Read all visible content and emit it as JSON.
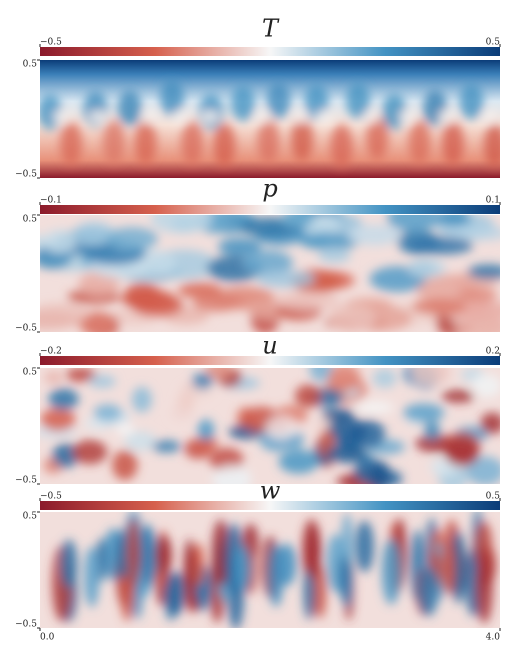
{
  "chart_data": [
    {
      "type": "heatmap",
      "title": "T",
      "colormap": "RdBu",
      "clim": [
        -0.5,
        0.5
      ],
      "cticks": [
        {
          "value": -0.5,
          "label": "−0.5"
        },
        0.5
      ],
      "xlim": [
        0,
        4
      ],
      "ylim": [
        -0.5,
        0.5
      ],
      "yticks": [
        {
          "value": -0.5,
          "label": "−0.5"
        },
        0.5
      ]
    },
    {
      "type": "heatmap",
      "title": "p",
      "colormap": "RdBu",
      "clim": [
        -0.1,
        0.1
      ],
      "cticks": [
        {
          "value": -0.1,
          "label": "−0.1"
        },
        0.1
      ],
      "xlim": [
        0,
        4
      ],
      "ylim": [
        -0.5,
        0.5
      ],
      "yticks": [
        {
          "value": -0.5,
          "label": "−0.5"
        },
        0.5
      ]
    },
    {
      "type": "heatmap",
      "title": "u",
      "colormap": "RdBu",
      "clim": [
        -0.2,
        0.2
      ],
      "cticks": [
        {
          "value": -0.2,
          "label": "−0.2"
        },
        0.2
      ],
      "xlim": [
        0,
        4
      ],
      "ylim": [
        -0.5,
        0.5
      ],
      "yticks": [
        {
          "value": -0.5,
          "label": "−0.5"
        },
        0.5
      ]
    },
    {
      "type": "heatmap",
      "title": "w",
      "colormap": "RdBu",
      "clim": [
        -0.5,
        0.5
      ],
      "cticks": [
        {
          "value": -0.5,
          "label": "−0.5"
        },
        0.5
      ],
      "xlim": [
        0,
        4
      ],
      "ylim": [
        -0.5,
        0.5
      ],
      "yticks": [
        {
          "value": -0.5,
          "label": "−0.5"
        },
        0.5
      ],
      "xticks": [
        {
          "value": 0,
          "label": "0.0"
        },
        {
          "value": 4,
          "label": "4.0"
        }
      ]
    }
  ]
}
